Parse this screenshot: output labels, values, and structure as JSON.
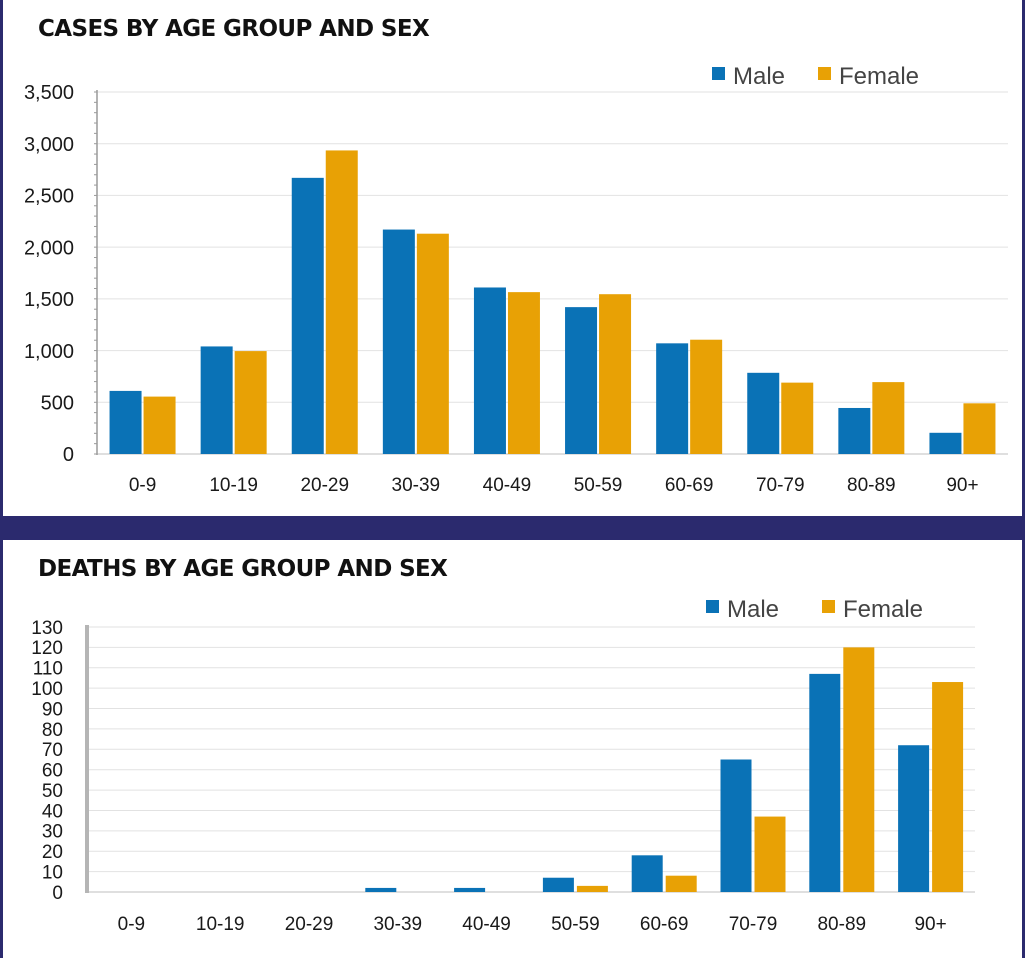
{
  "colors": {
    "male": "#0a72b6",
    "female": "#e8a105",
    "frame": "#2b2a6e",
    "grid": "#e2e2e2"
  },
  "chart_data": [
    {
      "type": "bar",
      "title": "CASES BY AGE GROUP AND SEX",
      "xlabel": "",
      "ylabel": "",
      "categories": [
        "0-9",
        "10-19",
        "20-29",
        "30-39",
        "40-49",
        "50-59",
        "60-69",
        "70-79",
        "80-89",
        "90+"
      ],
      "series": [
        {
          "name": "Male",
          "color": "#0a72b6",
          "values": [
            610,
            1040,
            2670,
            2170,
            1610,
            1420,
            1070,
            785,
            445,
            205
          ]
        },
        {
          "name": "Female",
          "color": "#e8a105",
          "values": [
            555,
            995,
            2935,
            2130,
            1565,
            1545,
            1105,
            690,
            695,
            490
          ]
        }
      ],
      "ylim": [
        0,
        3500
      ],
      "yticks": [
        0,
        500,
        1000,
        1500,
        2000,
        2500,
        3000,
        3500
      ],
      "ytick_labels": [
        "0",
        "500",
        "1,000",
        "1,500",
        "2,000",
        "2,500",
        "3,000",
        "3,500"
      ],
      "grid": true,
      "legend_position": "top-right"
    },
    {
      "type": "bar",
      "title": "DEATHS BY AGE GROUP AND SEX",
      "xlabel": "",
      "ylabel": "",
      "categories": [
        "0-9",
        "10-19",
        "20-29",
        "30-39",
        "40-49",
        "50-59",
        "60-69",
        "70-79",
        "80-89",
        "90+"
      ],
      "series": [
        {
          "name": "Male",
          "color": "#0a72b6",
          "values": [
            0,
            0,
            0,
            2,
            2,
            7,
            18,
            65,
            107,
            72
          ]
        },
        {
          "name": "Female",
          "color": "#e8a105",
          "values": [
            0,
            0,
            0,
            0,
            0,
            3,
            8,
            37,
            120,
            103
          ]
        }
      ],
      "ylim": [
        0,
        130
      ],
      "yticks": [
        0,
        10,
        20,
        30,
        40,
        50,
        60,
        70,
        80,
        90,
        100,
        110,
        120,
        130
      ],
      "ytick_labels": [
        "0",
        "10",
        "20",
        "30",
        "40",
        "50",
        "60",
        "70",
        "80",
        "90",
        "100",
        "110",
        "120",
        "130"
      ],
      "grid": true,
      "legend_position": "top-right"
    }
  ]
}
